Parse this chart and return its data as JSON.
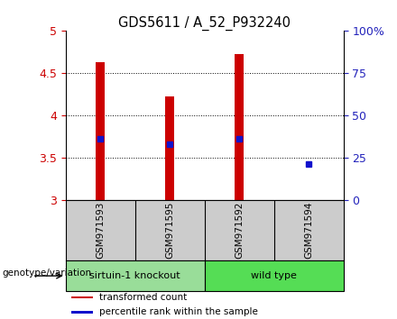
{
  "title": "GDS5611 / A_52_P932240",
  "samples": [
    "GSM971593",
    "GSM971595",
    "GSM971592",
    "GSM971594"
  ],
  "transformed_counts": [
    4.62,
    4.22,
    4.72,
    3.0
  ],
  "transformed_base": 3.0,
  "percentile_ranks": [
    3.72,
    3.66,
    3.72,
    3.43
  ],
  "ylim": [
    3.0,
    5.0
  ],
  "yticks_left": [
    3.0,
    3.5,
    4.0,
    4.5,
    5.0
  ],
  "ytick_labels_left": [
    "3",
    "3.5",
    "4",
    "4.5",
    "5"
  ],
  "yticks_right_vals": [
    0,
    25,
    50,
    75,
    100
  ],
  "ytick_labels_right": [
    "0",
    "25",
    "50",
    "75",
    "100%"
  ],
  "groups": [
    {
      "label": "sirtuin-1 knockout",
      "indices": [
        0,
        1
      ],
      "color": "#99dd99"
    },
    {
      "label": "wild type",
      "indices": [
        2,
        3
      ],
      "color": "#55dd55"
    }
  ],
  "bar_color": "#cc0000",
  "dot_color": "#1111cc",
  "bar_width": 0.12,
  "legend_labels": [
    "transformed count",
    "percentile rank within the sample"
  ],
  "genotype_label": "genotype/variation",
  "bg_color": "#ffffff",
  "sample_box_color": "#cccccc",
  "left_tick_color": "#cc0000",
  "right_tick_color": "#2222bb",
  "grid_color": "#000000"
}
